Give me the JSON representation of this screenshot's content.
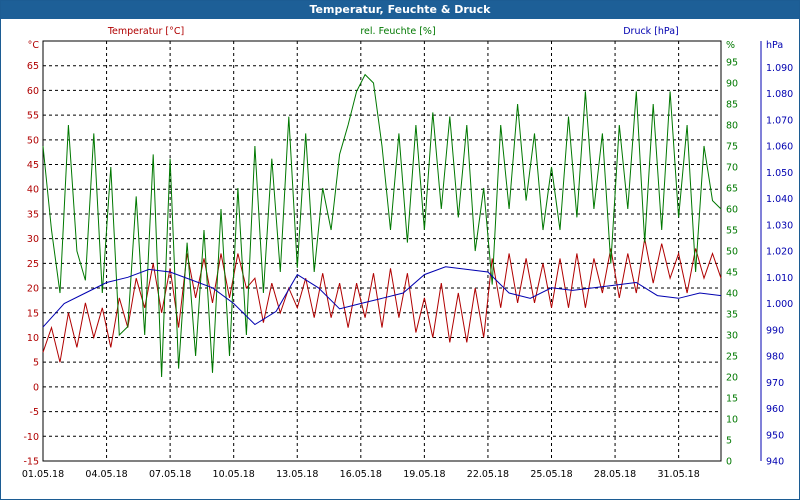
{
  "window": {
    "title": "Temperatur, Feuchte & Druck"
  },
  "colors": {
    "temperature": "#b00000",
    "humidity": "#007800",
    "pressure": "#0000b0",
    "titlebar": "#1d5f97",
    "grid": "#000000"
  },
  "chart_data": {
    "type": "line",
    "title": "Temperatur, Feuchte & Druck",
    "grid": true,
    "legend_placement": "top",
    "x_ticks": [
      "01.05.18",
      "04.05.18",
      "07.05.18",
      "10.05.18",
      "13.05.18",
      "16.05.18",
      "19.05.18",
      "22.05.18",
      "25.05.18",
      "28.05.18",
      "31.05.18"
    ],
    "x_range_days": [
      0,
      32
    ],
    "axes": [
      {
        "id": "temperature",
        "unit": "°C",
        "label": "Temperatur [°C]",
        "min": -15,
        "max": 70,
        "ticks": [
          "65",
          "60",
          "55",
          "50",
          "45",
          "40",
          "35",
          "30",
          "25",
          "20",
          "15",
          "10",
          "5",
          "0",
          "-5",
          "-10",
          "-15"
        ]
      },
      {
        "id": "humidity",
        "unit": "%",
        "label": "rel. Feuchte [%]",
        "min": 0,
        "max": 100,
        "ticks": [
          "95",
          "90",
          "85",
          "80",
          "75",
          "70",
          "65",
          "60",
          "55",
          "50",
          "45",
          "40",
          "35",
          "30",
          "25",
          "20",
          "15",
          "10",
          "5",
          "0"
        ]
      },
      {
        "id": "pressure",
        "unit": "hPa",
        "label": "Druck [hPa]",
        "min": 940,
        "max": 1100,
        "ticks": [
          "1.090",
          "1.080",
          "1.070",
          "1.060",
          "1.050",
          "1.040",
          "1.030",
          "1.020",
          "1.010",
          "1.000",
          "990",
          "980",
          "970",
          "960",
          "950",
          "940"
        ]
      }
    ],
    "series": [
      {
        "name": "Temperatur [°C]",
        "axis": "temperature",
        "points": [
          [
            0,
            7
          ],
          [
            0.4,
            12
          ],
          [
            0.8,
            5
          ],
          [
            1.2,
            15
          ],
          [
            1.6,
            8
          ],
          [
            2.0,
            17
          ],
          [
            2.4,
            10
          ],
          [
            2.8,
            16
          ],
          [
            3.2,
            8
          ],
          [
            3.6,
            18
          ],
          [
            4.0,
            12
          ],
          [
            4.4,
            22
          ],
          [
            4.8,
            16
          ],
          [
            5.2,
            25
          ],
          [
            5.6,
            15
          ],
          [
            6.0,
            24
          ],
          [
            6.4,
            12
          ],
          [
            6.8,
            27
          ],
          [
            7.2,
            18
          ],
          [
            7.6,
            26
          ],
          [
            8.0,
            17
          ],
          [
            8.4,
            27
          ],
          [
            8.8,
            18
          ],
          [
            9.2,
            27
          ],
          [
            9.6,
            20
          ],
          [
            10.0,
            22
          ],
          [
            10.4,
            13
          ],
          [
            10.8,
            21
          ],
          [
            11.2,
            15
          ],
          [
            11.6,
            20
          ],
          [
            12.0,
            16
          ],
          [
            12.4,
            22
          ],
          [
            12.8,
            14
          ],
          [
            13.2,
            23
          ],
          [
            13.6,
            14
          ],
          [
            14.0,
            21
          ],
          [
            14.4,
            12
          ],
          [
            14.8,
            21
          ],
          [
            15.2,
            14
          ],
          [
            15.6,
            23
          ],
          [
            16.0,
            12
          ],
          [
            16.4,
            24
          ],
          [
            16.8,
            14
          ],
          [
            17.2,
            23
          ],
          [
            17.6,
            11
          ],
          [
            18.0,
            18
          ],
          [
            18.4,
            10
          ],
          [
            18.8,
            21
          ],
          [
            19.2,
            9
          ],
          [
            19.6,
            19
          ],
          [
            20.0,
            9
          ],
          [
            20.4,
            20
          ],
          [
            20.8,
            10
          ],
          [
            21.2,
            26
          ],
          [
            21.6,
            16
          ],
          [
            22.0,
            27
          ],
          [
            22.4,
            17
          ],
          [
            22.8,
            26
          ],
          [
            23.2,
            17
          ],
          [
            23.6,
            25
          ],
          [
            24.0,
            16
          ],
          [
            24.4,
            26
          ],
          [
            24.8,
            16
          ],
          [
            25.2,
            27
          ],
          [
            25.6,
            16
          ],
          [
            26.0,
            26
          ],
          [
            26.4,
            19
          ],
          [
            26.8,
            28
          ],
          [
            27.2,
            18
          ],
          [
            27.6,
            27
          ],
          [
            28.0,
            19
          ],
          [
            28.4,
            30
          ],
          [
            28.8,
            21
          ],
          [
            29.2,
            29
          ],
          [
            29.6,
            22
          ],
          [
            30.0,
            27
          ],
          [
            30.4,
            19
          ],
          [
            30.8,
            28
          ],
          [
            31.2,
            22
          ],
          [
            31.6,
            27
          ],
          [
            32.0,
            22
          ]
        ]
      },
      {
        "name": "rel. Feuchte [%]",
        "axis": "humidity",
        "points": [
          [
            0,
            75
          ],
          [
            0.4,
            55
          ],
          [
            0.8,
            40
          ],
          [
            1.2,
            80
          ],
          [
            1.6,
            50
          ],
          [
            2.0,
            43
          ],
          [
            2.4,
            78
          ],
          [
            2.8,
            40
          ],
          [
            3.2,
            70
          ],
          [
            3.6,
            30
          ],
          [
            4.0,
            32
          ],
          [
            4.4,
            63
          ],
          [
            4.8,
            30
          ],
          [
            5.2,
            73
          ],
          [
            5.6,
            20
          ],
          [
            6.0,
            72
          ],
          [
            6.4,
            22
          ],
          [
            6.8,
            52
          ],
          [
            7.2,
            25
          ],
          [
            7.6,
            55
          ],
          [
            8.0,
            21
          ],
          [
            8.4,
            60
          ],
          [
            8.8,
            25
          ],
          [
            9.2,
            65
          ],
          [
            9.6,
            30
          ],
          [
            10.0,
            75
          ],
          [
            10.4,
            40
          ],
          [
            10.8,
            72
          ],
          [
            11.2,
            45
          ],
          [
            11.6,
            82
          ],
          [
            12.0,
            46
          ],
          [
            12.4,
            78
          ],
          [
            12.8,
            45
          ],
          [
            13.2,
            65
          ],
          [
            13.6,
            55
          ],
          [
            14.0,
            73
          ],
          [
            14.4,
            80
          ],
          [
            14.8,
            88
          ],
          [
            15.2,
            92
          ],
          [
            15.6,
            90
          ],
          [
            16.0,
            75
          ],
          [
            16.4,
            55
          ],
          [
            16.8,
            78
          ],
          [
            17.2,
            52
          ],
          [
            17.6,
            80
          ],
          [
            18.0,
            55
          ],
          [
            18.4,
            83
          ],
          [
            18.8,
            60
          ],
          [
            19.2,
            82
          ],
          [
            19.6,
            58
          ],
          [
            20.0,
            80
          ],
          [
            20.4,
            50
          ],
          [
            20.8,
            65
          ],
          [
            21.2,
            42
          ],
          [
            21.6,
            80
          ],
          [
            22.0,
            60
          ],
          [
            22.4,
            85
          ],
          [
            22.8,
            62
          ],
          [
            23.2,
            78
          ],
          [
            23.6,
            55
          ],
          [
            24.0,
            70
          ],
          [
            24.4,
            55
          ],
          [
            24.8,
            82
          ],
          [
            25.2,
            58
          ],
          [
            25.6,
            88
          ],
          [
            26.0,
            60
          ],
          [
            26.4,
            78
          ],
          [
            26.8,
            47
          ],
          [
            27.2,
            80
          ],
          [
            27.6,
            60
          ],
          [
            28.0,
            88
          ],
          [
            28.4,
            52
          ],
          [
            28.8,
            85
          ],
          [
            29.2,
            55
          ],
          [
            29.6,
            88
          ],
          [
            30.0,
            58
          ],
          [
            30.4,
            80
          ],
          [
            30.8,
            45
          ],
          [
            31.2,
            75
          ],
          [
            31.6,
            62
          ],
          [
            32.0,
            60
          ]
        ]
      },
      {
        "name": "Druck [hPa]",
        "axis": "pressure",
        "points": [
          [
            0,
            991
          ],
          [
            1,
            1000
          ],
          [
            2,
            1004
          ],
          [
            3,
            1008
          ],
          [
            4,
            1010
          ],
          [
            5,
            1013
          ],
          [
            6,
            1012
          ],
          [
            7,
            1009
          ],
          [
            8,
            1006
          ],
          [
            9,
            1000
          ],
          [
            10,
            992
          ],
          [
            11,
            997
          ],
          [
            12,
            1011
          ],
          [
            13,
            1006
          ],
          [
            14,
            998
          ],
          [
            15,
            1000
          ],
          [
            16,
            1002
          ],
          [
            17,
            1004
          ],
          [
            18,
            1011
          ],
          [
            19,
            1014
          ],
          [
            20,
            1013
          ],
          [
            21,
            1012
          ],
          [
            22,
            1004
          ],
          [
            23,
            1002
          ],
          [
            24,
            1006
          ],
          [
            25,
            1005
          ],
          [
            26,
            1006
          ],
          [
            27,
            1007
          ],
          [
            28,
            1008
          ],
          [
            29,
            1003
          ],
          [
            30,
            1002
          ],
          [
            31,
            1004
          ],
          [
            32,
            1003
          ]
        ]
      }
    ]
  }
}
